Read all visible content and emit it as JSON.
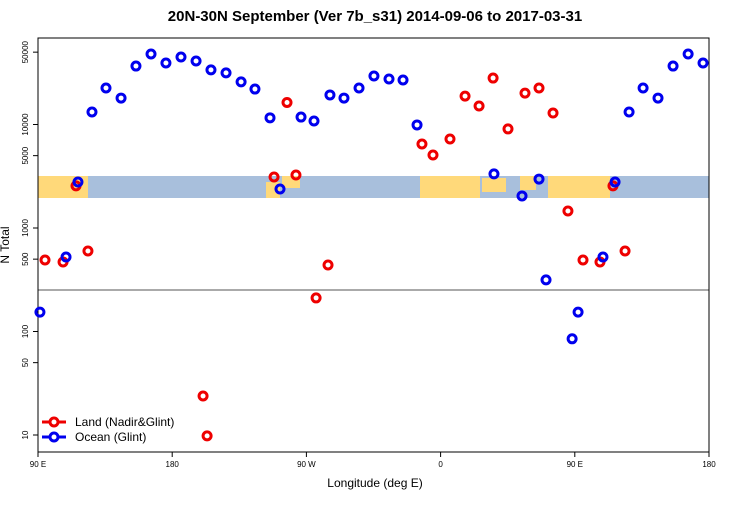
{
  "chart_data": {
    "type": "scatter",
    "title": "20N-30N September (Ver 7b_s31)   2014-09-06 to 2017-03-31",
    "x_label": "Longitude (deg E)",
    "y_label": "N Total",
    "log_y": true,
    "legend": "bottom-left",
    "xlim": [
      90,
      540
    ],
    "ylim": [
      6.85,
      68500
    ],
    "xticks": [
      {
        "value": 90,
        "label": "90 E"
      },
      180,
      {
        "value": 270,
        "label": "90 W"
      },
      {
        "value": 360,
        "label": "0"
      },
      {
        "value": 450,
        "label": "90 E"
      },
      {
        "value": 540,
        "label": "180"
      }
    ],
    "yticks": [
      10,
      50,
      100,
      500,
      1000,
      5000,
      10000,
      50000
    ],
    "series": [
      {
        "name": "Land (Nadir&Glint)",
        "color": "#ee0000",
        "x": [
          94.7,
          106.8,
          115.5,
          123.5,
          200.7,
          203.4,
          248.3,
          257.0,
          263.0,
          276.5,
          284.5,
          347.5,
          354.9,
          366.3,
          376.4,
          385.8,
          395.2,
          405.2,
          416.6,
          426.0,
          435.4,
          445.4,
          455.5,
          466.9,
          475.6,
          483.7
        ],
        "values": [
          491,
          469,
          2550,
          600,
          23.8,
          9.8,
          3110,
          16300,
          3250,
          211,
          439,
          6480,
          5070,
          7240,
          18800,
          15100,
          28100,
          9060,
          20100,
          22500,
          12900,
          1460,
          491,
          469,
          2550,
          600
        ]
      },
      {
        "name": "Ocean (Glint)",
        "color": "#0000ee",
        "x": [
          91.3,
          108.8,
          116.8,
          126.2,
          135.6,
          145.7,
          155.7,
          165.8,
          175.8,
          185.9,
          196.0,
          206.0,
          216.1,
          226.2,
          235.5,
          245.6,
          252.3,
          266.4,
          275.1,
          285.8,
          295.2,
          305.3,
          315.3,
          325.4,
          334.8,
          344.2,
          395.8,
          414.6,
          426.0,
          430.7,
          448.2,
          452.2,
          468.9,
          477.0,
          486.4,
          495.8,
          505.8,
          515.9,
          526.0,
          536.0
        ],
        "values": [
          154,
          525,
          2780,
          13200,
          22500,
          18000,
          36700,
          48000,
          39300,
          44900,
          41100,
          33700,
          31500,
          25800,
          22000,
          11600,
          2380,
          11800,
          10800,
          19300,
          18000,
          22500,
          29400,
          27500,
          26900,
          9900,
          3330,
          2040,
          2970,
          315,
          85,
          154,
          525,
          2780,
          13200,
          22500,
          18000,
          36700,
          48000,
          39300
        ]
      }
    ]
  }
}
